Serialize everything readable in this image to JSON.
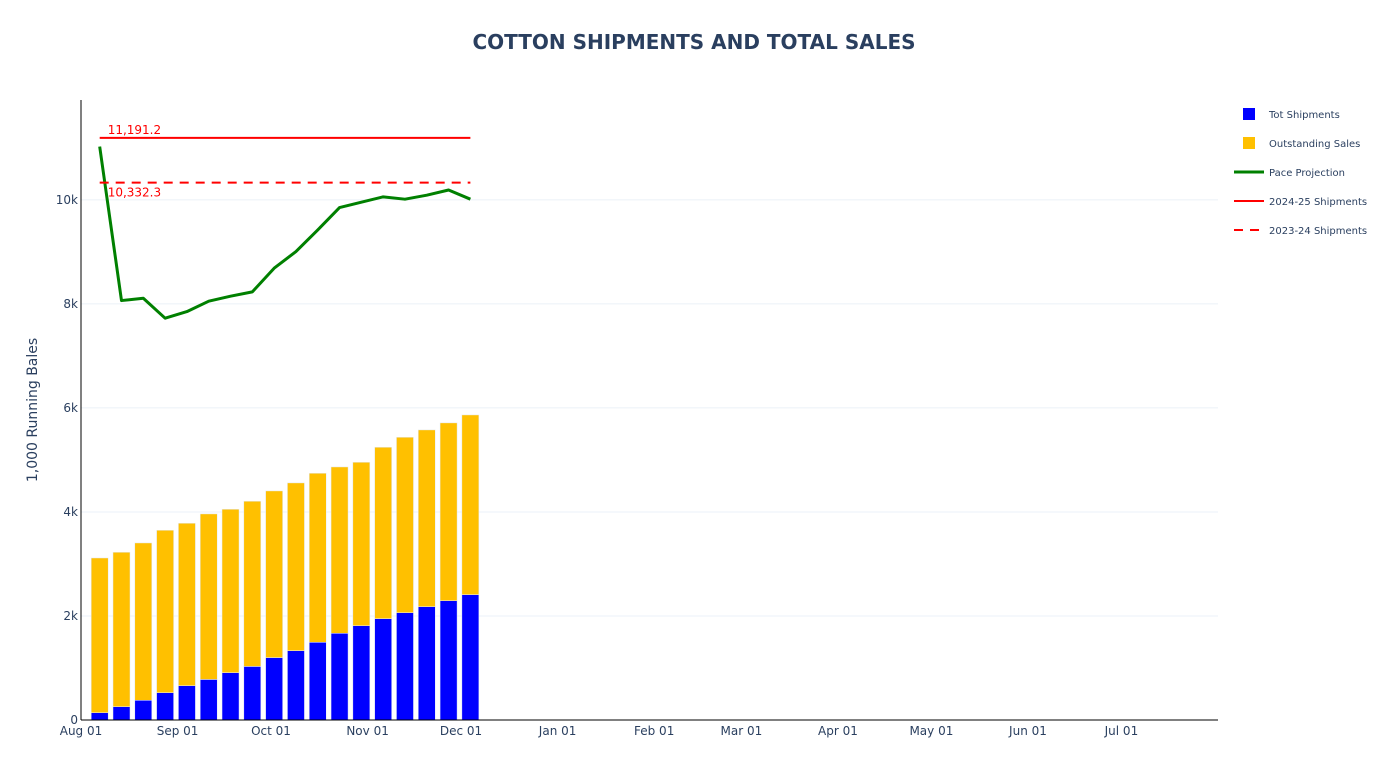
{
  "chart_data": {
    "type": "bar",
    "title": "COTTON SHIPMENTS AND TOTAL SALES",
    "xlabel": "",
    "ylabel": "1,000 Running Bales",
    "x_range": [
      "2024-08-01",
      "2025-08-01"
    ],
    "ylim": [
      0,
      11920
    ],
    "grid": true,
    "barmode": "stack",
    "legend_position": "top-right",
    "x_tick_labels": [
      {
        "date": "2024-08-01",
        "label": "Aug 01"
      },
      {
        "date": "2024-09-01",
        "label": "Sep 01"
      },
      {
        "date": "2024-10-01",
        "label": "Oct 01"
      },
      {
        "date": "2024-11-01",
        "label": "Nov 01"
      },
      {
        "date": "2024-12-01",
        "label": "Dec 01"
      },
      {
        "date": "2025-01-01",
        "label": "Jan 01"
      },
      {
        "date": "2025-02-01",
        "label": "Feb 01"
      },
      {
        "date": "2025-03-01",
        "label": "Mar 01"
      },
      {
        "date": "2025-04-01",
        "label": "Apr 01"
      },
      {
        "date": "2025-05-01",
        "label": "May 01"
      },
      {
        "date": "2025-06-01",
        "label": "Jun 01"
      },
      {
        "date": "2025-07-01",
        "label": "Jul 01"
      }
    ],
    "y_ticks": [
      {
        "value": 0,
        "label": "0"
      },
      {
        "value": 2000,
        "label": "2k"
      },
      {
        "value": 4000,
        "label": "4k"
      },
      {
        "value": 6000,
        "label": "6k"
      },
      {
        "value": 8000,
        "label": "8k"
      },
      {
        "value": 10000,
        "label": "10k"
      }
    ],
    "x": [
      "2024-08-07",
      "2024-08-14",
      "2024-08-21",
      "2024-08-28",
      "2024-09-04",
      "2024-09-11",
      "2024-09-18",
      "2024-09-25",
      "2024-10-02",
      "2024-10-09",
      "2024-10-16",
      "2024-10-23",
      "2024-10-30",
      "2024-11-06",
      "2024-11-13",
      "2024-11-20",
      "2024-11-27",
      "2024-12-04"
    ],
    "series": [
      {
        "name": "Tot Shipments",
        "type": "bar",
        "color": "#0000ff",
        "values": [
          140,
          256,
          379,
          525,
          660,
          780,
          910,
          1030,
          1200,
          1333,
          1494,
          1667,
          1813,
          1948,
          2063,
          2179,
          2294,
          2410
        ]
      },
      {
        "name": "Outstanding Sales",
        "type": "bar",
        "color": "#ffc000",
        "values": [
          2975,
          2969,
          3025,
          3123,
          3123,
          3182,
          3142,
          3176,
          3204,
          3225,
          3250,
          3198,
          3142,
          3296,
          3373,
          3398,
          3418,
          3455
        ]
      },
      {
        "name": "Pace Projection",
        "type": "line",
        "color": "#008000",
        "values": [
          11025,
          8064,
          8109,
          7725,
          7852,
          8052,
          8148,
          8231,
          8686,
          9006,
          9423,
          9852,
          9955,
          10058,
          10013,
          10090,
          10190,
          10013
        ]
      },
      {
        "name": "2024-25 Shipments",
        "type": "hline",
        "color": "#ff0000",
        "dash": "solid",
        "value": 11191.2,
        "x_span": [
          "2024-08-07",
          "2024-12-04"
        ],
        "annotation": "11,191.2"
      },
      {
        "name": "2023-24 Shipments",
        "type": "hline",
        "color": "#ff0000",
        "dash": "dash",
        "value": 10332.3,
        "x_span": [
          "2024-08-07",
          "2024-12-04"
        ],
        "annotation": "10,332.3"
      }
    ]
  }
}
